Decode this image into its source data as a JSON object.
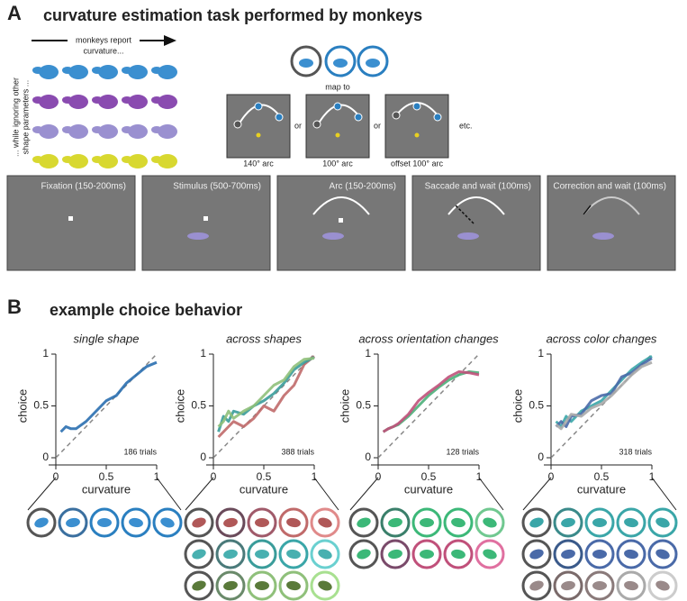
{
  "panel_a": {
    "label": "A",
    "title": "curvature estimation task performed by monkeys",
    "report": [
      "monkeys report",
      "curvature..."
    ],
    "ignore": [
      "... while ignoring other",
      "shape parameters ..."
    ],
    "map_to": "map to",
    "or": [
      "or",
      "or"
    ],
    "etc": "etc.",
    "arcs": [
      "140° arc",
      "100° arc",
      "offset 100° arc"
    ],
    "epochs": [
      "Fixation (150-200ms)",
      "Stimulus (500-700ms)",
      "Arc (150-200ms)",
      "Saccade and wait (100ms)",
      "Correction and wait (100ms)"
    ]
  },
  "panel_b": {
    "label": "B",
    "title": "example choice behavior"
  },
  "chart_data": [
    {
      "type": "line",
      "title": "single shape",
      "xlabel": "curvature",
      "ylabel": "choice",
      "annotation": "186 trials",
      "x": [
        0.05,
        0.1,
        0.15,
        0.2,
        0.3,
        0.4,
        0.5,
        0.6,
        0.7,
        0.8,
        0.9,
        1.0
      ],
      "series": [
        {
          "color": "#2a6fb0",
          "values": [
            0.25,
            0.3,
            0.28,
            0.28,
            0.35,
            0.45,
            0.55,
            0.6,
            0.72,
            0.8,
            0.88,
            0.92
          ]
        }
      ],
      "xlim": [
        0,
        1
      ],
      "ylim": [
        0,
        1
      ],
      "xticks": [
        0,
        0.5,
        1
      ],
      "yticks": [
        0,
        0.5,
        1
      ]
    },
    {
      "type": "line",
      "title": "across shapes",
      "xlabel": "curvature",
      "ylabel": "choice",
      "annotation": "388 trials",
      "x": [
        0.05,
        0.1,
        0.15,
        0.2,
        0.3,
        0.4,
        0.5,
        0.6,
        0.7,
        0.8,
        0.9,
        1.0
      ],
      "series": [
        {
          "color": "#c06a6a",
          "values": [
            0.2,
            0.25,
            0.3,
            0.35,
            0.3,
            0.38,
            0.5,
            0.45,
            0.6,
            0.7,
            0.9,
            0.98
          ]
        },
        {
          "color": "#3a9c9a",
          "values": [
            0.25,
            0.4,
            0.35,
            0.45,
            0.42,
            0.5,
            0.55,
            0.62,
            0.72,
            0.85,
            0.92,
            0.97
          ]
        },
        {
          "color": "#8fc07a",
          "values": [
            0.3,
            0.35,
            0.45,
            0.38,
            0.45,
            0.5,
            0.6,
            0.7,
            0.75,
            0.88,
            0.95,
            0.96
          ]
        }
      ],
      "xlim": [
        0,
        1
      ],
      "ylim": [
        0,
        1
      ],
      "xticks": [
        0,
        0.5,
        1
      ],
      "yticks": [
        0,
        0.5,
        1
      ]
    },
    {
      "type": "line",
      "title": "across orientation changes",
      "xlabel": "curvature",
      "ylabel": "choice",
      "annotation": "128 trials",
      "x": [
        0.05,
        0.1,
        0.15,
        0.2,
        0.3,
        0.4,
        0.5,
        0.6,
        0.7,
        0.8,
        0.9,
        1.0
      ],
      "series": [
        {
          "color": "#4caf7a",
          "values": [
            0.25,
            0.28,
            0.3,
            0.32,
            0.4,
            0.5,
            0.6,
            0.68,
            0.75,
            0.8,
            0.83,
            0.82
          ]
        },
        {
          "color": "#c0507a",
          "values": [
            0.25,
            0.28,
            0.3,
            0.33,
            0.42,
            0.55,
            0.63,
            0.7,
            0.78,
            0.83,
            0.82,
            0.8
          ]
        }
      ],
      "xlim": [
        0,
        1
      ],
      "ylim": [
        0,
        1
      ],
      "xticks": [
        0,
        0.5,
        1
      ],
      "yticks": [
        0,
        0.5,
        1
      ]
    },
    {
      "type": "line",
      "title": "across color changes",
      "xlabel": "curvature",
      "ylabel": "choice",
      "annotation": "318 trials",
      "x": [
        0.05,
        0.1,
        0.15,
        0.2,
        0.3,
        0.4,
        0.5,
        0.6,
        0.7,
        0.8,
        0.9,
        1.0
      ],
      "series": [
        {
          "color": "#3aa6a8",
          "values": [
            0.35,
            0.3,
            0.4,
            0.35,
            0.45,
            0.5,
            0.55,
            0.65,
            0.75,
            0.85,
            0.92,
            0.98
          ]
        },
        {
          "color": "#4a6aa8",
          "values": [
            0.3,
            0.35,
            0.3,
            0.4,
            0.42,
            0.55,
            0.6,
            0.62,
            0.78,
            0.82,
            0.9,
            0.96
          ]
        },
        {
          "color": "#aaaaaa",
          "values": [
            0.32,
            0.28,
            0.35,
            0.42,
            0.4,
            0.48,
            0.52,
            0.6,
            0.7,
            0.8,
            0.88,
            0.92
          ]
        }
      ],
      "xlim": [
        0,
        1
      ],
      "ylim": [
        0,
        1
      ],
      "xticks": [
        0,
        0.5,
        1
      ],
      "yticks": [
        0,
        0.5,
        1
      ]
    }
  ]
}
